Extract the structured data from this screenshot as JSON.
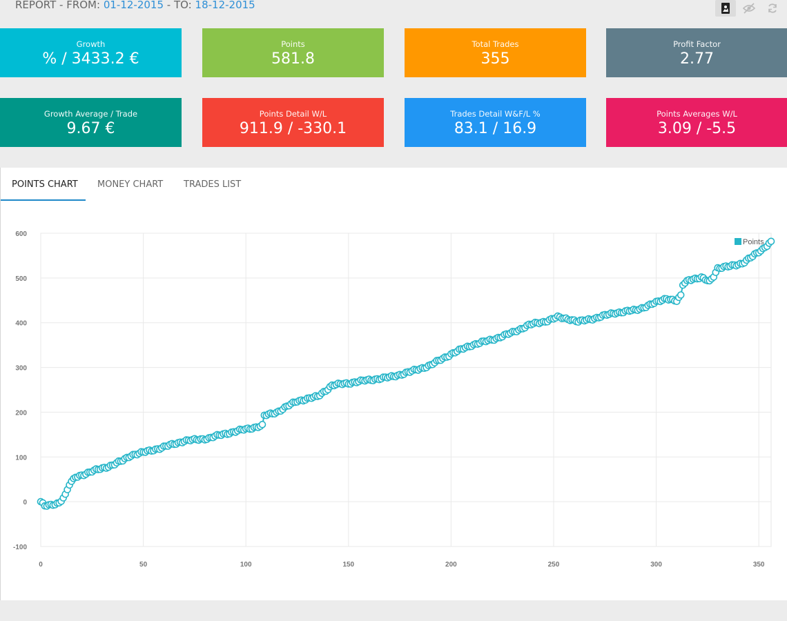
{
  "header": {
    "prefix": "REPORT - FROM:",
    "from_date": "01-12-2015",
    "sep": "- TO:",
    "to_date": "18-12-2015"
  },
  "tiles": [
    {
      "label": "Growth",
      "value": "% / 3433.2 €",
      "color": "#00bcd4"
    },
    {
      "label": "Points",
      "value": "581.8",
      "color": "#8bc34a"
    },
    {
      "label": "Total Trades",
      "value": "355",
      "color": "#ff9800"
    },
    {
      "label": "Profit Factor",
      "value": "2.77",
      "color": "#607d8b"
    },
    {
      "label": "Growth Average / Trade",
      "value": "9.67 €",
      "color": "#009688"
    },
    {
      "label": "Points Detail W/L",
      "value": "911.9 / -330.1",
      "color": "#f44336"
    },
    {
      "label": "Trades Detail W&F/L %",
      "value": "83.1 / 16.9",
      "color": "#2196f3"
    },
    {
      "label": "Points Averages W/L",
      "value": "3.09 / -5.5",
      "color": "#e91e63"
    }
  ],
  "tabs": [
    "POINTS CHART",
    "MONEY CHART",
    "TRADES LIST"
  ],
  "active_tab": "POINTS CHART",
  "toolbar_icons": [
    "image-icon",
    "eye-off-icon",
    "refresh-icon"
  ],
  "chart_data": {
    "type": "line",
    "title": "",
    "xlabel": "",
    "ylabel": "",
    "xlim": [
      0,
      355
    ],
    "ylim": [
      -100,
      600
    ],
    "x_ticks": [
      0,
      50,
      100,
      150,
      200,
      250,
      300,
      350
    ],
    "y_ticks": [
      -100,
      0,
      100,
      200,
      300,
      400,
      500,
      600
    ],
    "grid": true,
    "legend": "top-right",
    "series": [
      {
        "name": "Points",
        "color": "#26b5c8",
        "anchors": [
          [
            0,
            0
          ],
          [
            2,
            -10
          ],
          [
            5,
            -8
          ],
          [
            9,
            -2
          ],
          [
            12,
            15
          ],
          [
            14,
            38
          ],
          [
            17,
            55
          ],
          [
            22,
            63
          ],
          [
            28,
            72
          ],
          [
            35,
            82
          ],
          [
            40,
            92
          ],
          [
            44,
            104
          ],
          [
            50,
            110
          ],
          [
            60,
            122
          ],
          [
            70,
            136
          ],
          [
            75,
            138
          ],
          [
            82,
            142
          ],
          [
            90,
            152
          ],
          [
            100,
            162
          ],
          [
            108,
            170
          ],
          [
            109,
            192
          ],
          [
            115,
            200
          ],
          [
            125,
            225
          ],
          [
            135,
            235
          ],
          [
            142,
            260
          ],
          [
            150,
            265
          ],
          [
            160,
            272
          ],
          [
            170,
            278
          ],
          [
            180,
            290
          ],
          [
            190,
            305
          ],
          [
            200,
            330
          ],
          [
            210,
            350
          ],
          [
            220,
            362
          ],
          [
            230,
            378
          ],
          [
            238,
            395
          ],
          [
            245,
            402
          ],
          [
            252,
            412
          ],
          [
            258,
            408
          ],
          [
            262,
            402
          ],
          [
            270,
            410
          ],
          [
            280,
            422
          ],
          [
            290,
            428
          ],
          [
            300,
            445
          ],
          [
            305,
            455
          ],
          [
            310,
            448
          ],
          [
            312,
            460
          ],
          [
            313,
            485
          ],
          [
            316,
            497
          ],
          [
            322,
            500
          ],
          [
            326,
            492
          ],
          [
            328,
            505
          ],
          [
            330,
            522
          ],
          [
            335,
            525
          ],
          [
            342,
            533
          ],
          [
            347,
            548
          ],
          [
            352,
            565
          ],
          [
            356,
            581.8
          ]
        ]
      }
    ]
  }
}
